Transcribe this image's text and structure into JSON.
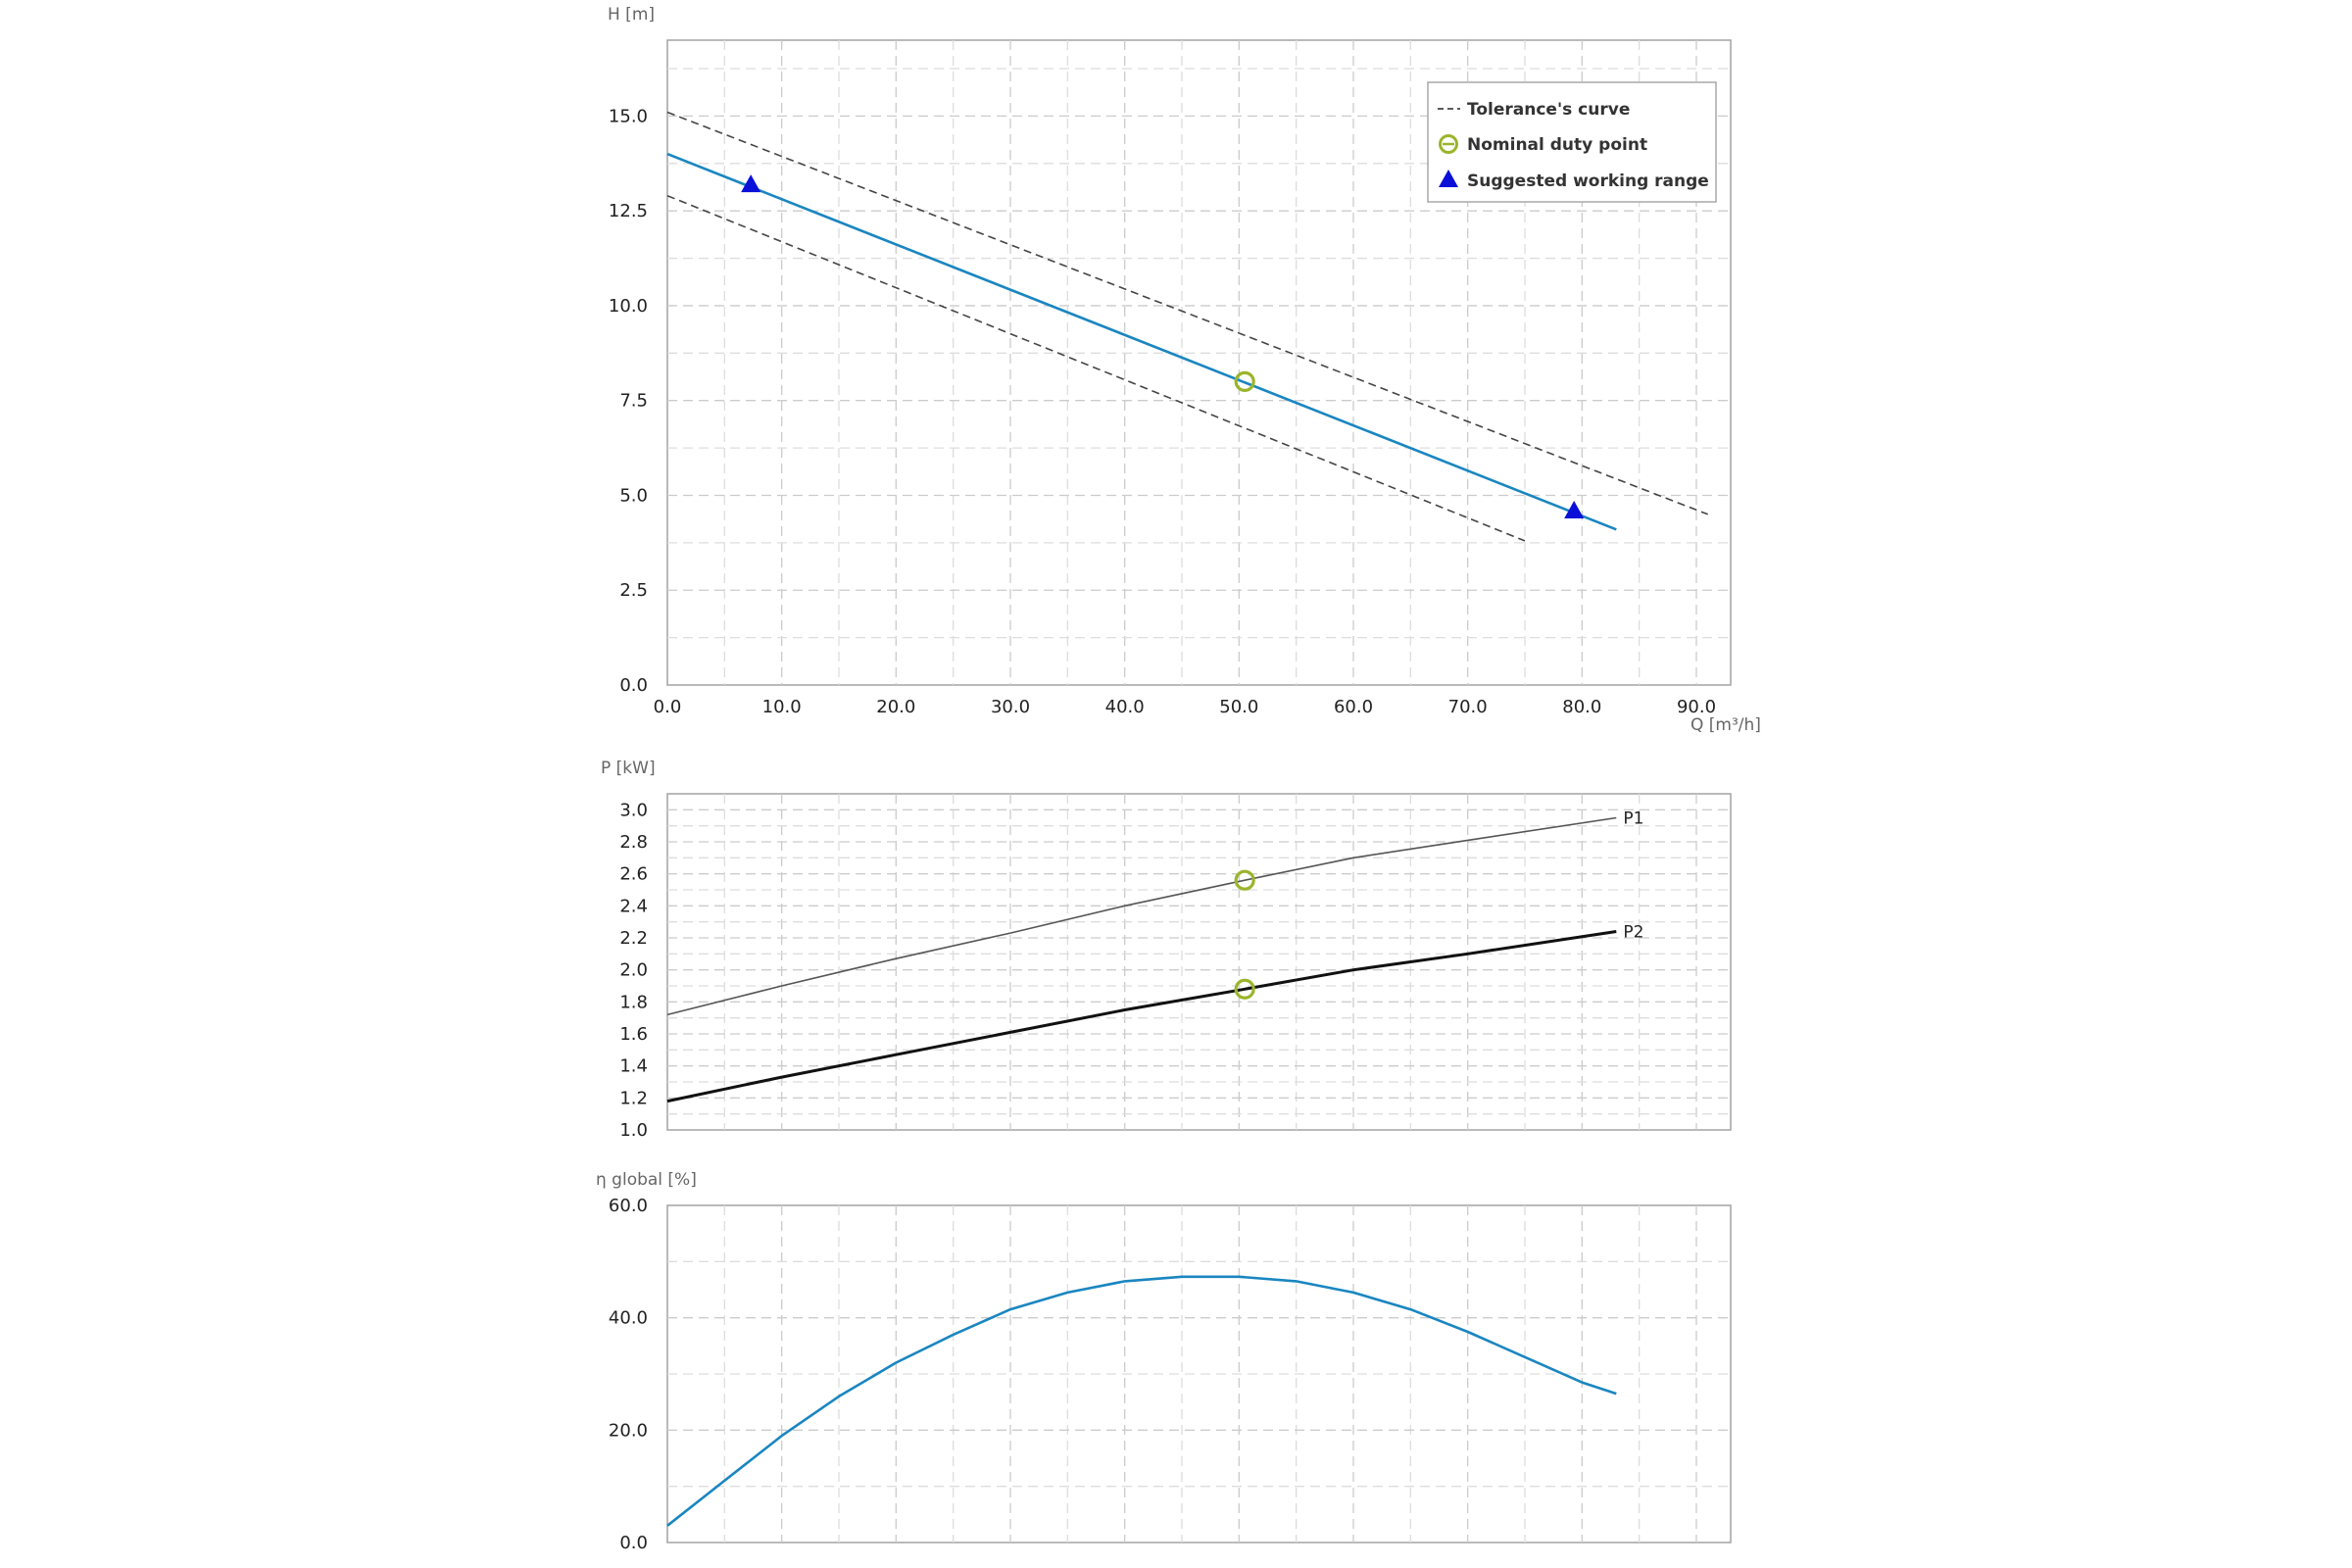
{
  "chart_data": [
    {
      "id": "head",
      "type": "line",
      "ylabel": "H [m]",
      "xlabel": "Q [m³/h]",
      "xlim": [
        0,
        93
      ],
      "ylim": [
        0,
        17
      ],
      "xticks": [
        "0.0",
        "10.0",
        "20.0",
        "30.0",
        "40.0",
        "50.0",
        "60.0",
        "70.0",
        "80.0",
        "90.0"
      ],
      "yticks": [
        "0.0",
        "2.5",
        "5.0",
        "7.5",
        "10.0",
        "12.5",
        "15.0"
      ],
      "grid": true,
      "series": [
        {
          "key": "curve",
          "color": "#1a86c0",
          "x": [
            0,
            83
          ],
          "y": [
            14.0,
            4.1
          ]
        },
        {
          "key": "tol_upper",
          "name": "Tolerance's curve",
          "color": "#444444",
          "dashed": true,
          "x": [
            0,
            91
          ],
          "y": [
            15.1,
            4.5
          ]
        },
        {
          "key": "tol_lower",
          "color": "#444444",
          "dashed": true,
          "x": [
            0,
            75
          ],
          "y": [
            12.9,
            3.8
          ]
        }
      ],
      "duty_point": {
        "name": "Nominal duty point",
        "x": 50.5,
        "y": 8.0,
        "color": "#9ab52c"
      },
      "working_range": {
        "name": "Suggested working range",
        "color": "#0a10d8",
        "points": [
          {
            "x": 7.3,
            "y": 13.2
          },
          {
            "x": 79.3,
            "y": 4.6
          }
        ]
      },
      "legend": {
        "position": "top-right",
        "items": [
          {
            "kind": "dashed",
            "label": "Tolerance's curve"
          },
          {
            "kind": "circle",
            "label": "Nominal duty point"
          },
          {
            "kind": "triangle",
            "label": "Suggested working range"
          }
        ]
      }
    },
    {
      "id": "power",
      "type": "line",
      "ylabel": "P [kW]",
      "xlim": [
        0,
        93
      ],
      "ylim": [
        1.0,
        3.1
      ],
      "yticks": [
        "1.0",
        "1.2",
        "1.4",
        "1.6",
        "1.8",
        "2.0",
        "2.2",
        "2.4",
        "2.6",
        "2.8",
        "3.0"
      ],
      "grid": true,
      "series": [
        {
          "name": "P1",
          "color": "#555555",
          "width": 1.6,
          "x": [
            0,
            10,
            20,
            30,
            40,
            50.5,
            60,
            70,
            83
          ],
          "y": [
            1.72,
            1.9,
            2.07,
            2.23,
            2.4,
            2.56,
            2.7,
            2.81,
            2.95
          ]
        },
        {
          "name": "P2",
          "color": "#111111",
          "width": 3,
          "x": [
            0,
            10,
            20,
            30,
            40,
            50.5,
            60,
            70,
            83
          ],
          "y": [
            1.18,
            1.33,
            1.47,
            1.61,
            1.75,
            1.88,
            2.0,
            2.1,
            2.24
          ]
        }
      ],
      "duty_points": [
        {
          "x": 50.5,
          "y": 2.56
        },
        {
          "x": 50.5,
          "y": 1.88
        }
      ],
      "duty_color": "#9ab52c"
    },
    {
      "id": "efficiency",
      "type": "line",
      "ylabel": "η global [%]",
      "xlim": [
        0,
        93
      ],
      "ylim": [
        0,
        60
      ],
      "yticks": [
        "0.0",
        "20.0",
        "40.0",
        "60.0"
      ],
      "grid": true,
      "series": [
        {
          "key": "eta",
          "color": "#1a86c0",
          "width": 2.6,
          "x": [
            0,
            5,
            10,
            15,
            20,
            25,
            30,
            35,
            40,
            45,
            50,
            55,
            60,
            65,
            70,
            75,
            80,
            83
          ],
          "y": [
            3,
            11,
            19,
            26,
            32,
            37,
            41.5,
            44.5,
            46.5,
            47.3,
            47.3,
            46.5,
            44.5,
            41.5,
            37.5,
            33,
            28.5,
            26.5
          ]
        }
      ]
    }
  ]
}
